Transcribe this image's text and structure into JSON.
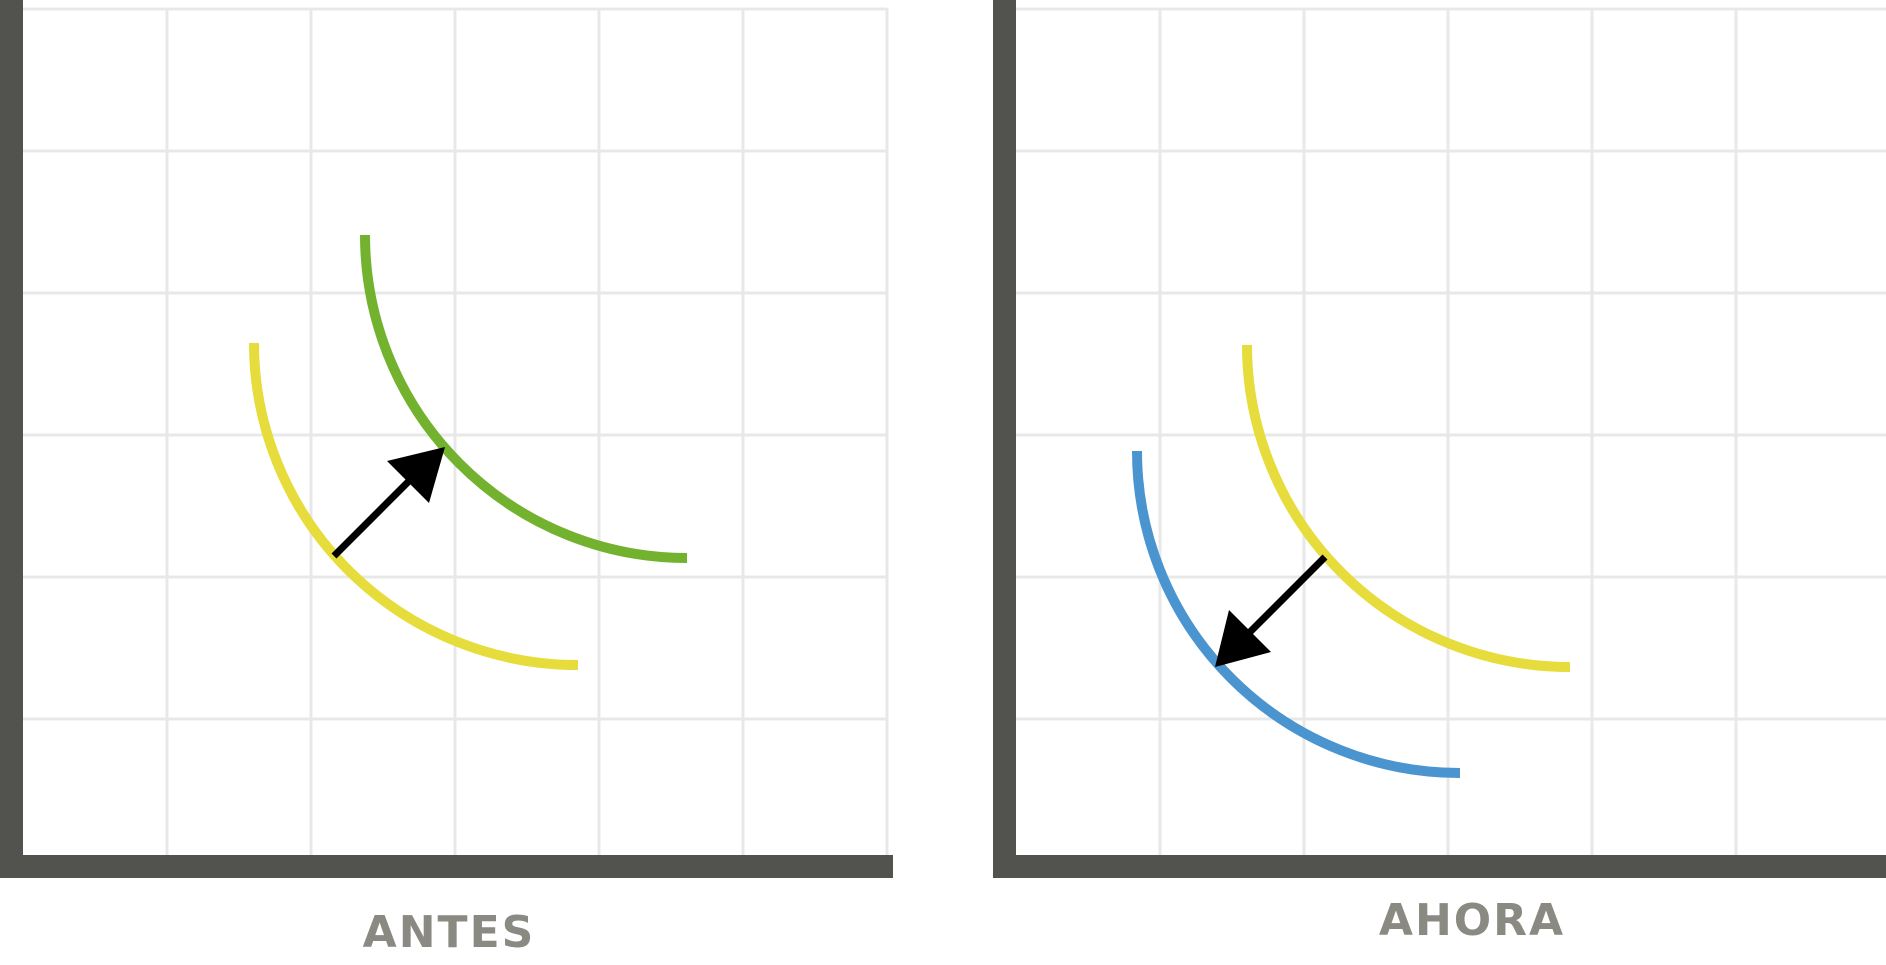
{
  "panels": [
    {
      "label": "ANTES",
      "curves": [
        {
          "role": "original",
          "color": "#e6dc3c"
        },
        {
          "role": "shifted",
          "color": "#73b22e"
        }
      ],
      "shift_direction": "outward"
    },
    {
      "label": "AHORA",
      "curves": [
        {
          "role": "original",
          "color": "#e6dc3c"
        },
        {
          "role": "shifted",
          "color": "#4a94cf"
        }
      ],
      "shift_direction": "inward"
    }
  ],
  "colors": {
    "axis": "#52524f",
    "grid": "#e8e8e8",
    "arrow": "#000000"
  }
}
